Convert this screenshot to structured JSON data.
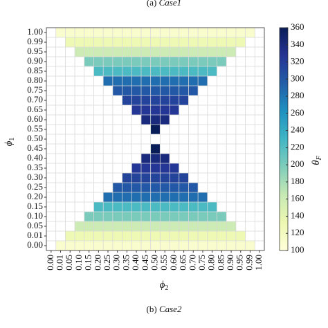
{
  "chart_data": {
    "type": "heatmap",
    "top_caption": {
      "label": "(a)",
      "text": "Case1"
    },
    "caption": {
      "label": "(b)",
      "text": "Case2"
    },
    "xlabel": {
      "symbol": "ϕ",
      "subscript": "2"
    },
    "ylabel": {
      "symbol": "ϕ",
      "subscript": "1"
    },
    "colorbar_label": {
      "symbol": "θ",
      "subscript": "F"
    },
    "x": [
      "0.00",
      "0.01",
      "0.05",
      "0.10",
      "0.15",
      "0.20",
      "0.25",
      "0.30",
      "0.35",
      "0.40",
      "0.45",
      "0.50",
      "0.55",
      "0.60",
      "0.65",
      "0.70",
      "0.75",
      "0.80",
      "0.85",
      "0.90",
      "0.95",
      "0.99",
      "1.00"
    ],
    "y": [
      "0.00",
      "0.01",
      "0.05",
      "0.10",
      "0.15",
      "0.20",
      "0.25",
      "0.30",
      "0.35",
      "0.40",
      "0.45",
      "0.50",
      "0.55",
      "0.60",
      "0.65",
      "0.70",
      "0.75",
      "0.80",
      "0.85",
      "0.90",
      "0.95",
      "0.99",
      "1.00"
    ],
    "z": [
      [
        null,
        110,
        110,
        110,
        110,
        110,
        110,
        110,
        110,
        110,
        110,
        110,
        110,
        110,
        110,
        110,
        110,
        110,
        110,
        110,
        110,
        110,
        null
      ],
      [
        null,
        null,
        130,
        130,
        130,
        130,
        130,
        130,
        130,
        130,
        130,
        130,
        130,
        130,
        130,
        130,
        130,
        130,
        130,
        130,
        130,
        null,
        null
      ],
      [
        null,
        null,
        null,
        160,
        160,
        160,
        160,
        160,
        160,
        160,
        160,
        160,
        160,
        160,
        160,
        160,
        160,
        160,
        160,
        160,
        null,
        null,
        null
      ],
      [
        null,
        null,
        null,
        null,
        200,
        200,
        200,
        200,
        200,
        200,
        200,
        200,
        200,
        200,
        200,
        200,
        200,
        200,
        200,
        null,
        null,
        null,
        null
      ],
      [
        null,
        null,
        null,
        null,
        null,
        225,
        225,
        225,
        225,
        225,
        225,
        225,
        225,
        225,
        225,
        225,
        225,
        225,
        null,
        null,
        null,
        null,
        null
      ],
      [
        null,
        null,
        null,
        null,
        null,
        null,
        285,
        285,
        285,
        285,
        285,
        285,
        285,
        285,
        285,
        285,
        285,
        null,
        null,
        null,
        null,
        null,
        null
      ],
      [
        null,
        null,
        null,
        null,
        null,
        null,
        null,
        300,
        300,
        300,
        300,
        300,
        300,
        300,
        300,
        300,
        null,
        null,
        null,
        null,
        null,
        null,
        null
      ],
      [
        null,
        null,
        null,
        null,
        null,
        null,
        null,
        null,
        315,
        315,
        315,
        315,
        315,
        315,
        315,
        null,
        null,
        null,
        null,
        null,
        null,
        null,
        null
      ],
      [
        null,
        null,
        null,
        null,
        null,
        null,
        null,
        null,
        null,
        325,
        325,
        325,
        325,
        325,
        null,
        null,
        null,
        null,
        null,
        null,
        null,
        null,
        null
      ],
      [
        null,
        null,
        null,
        null,
        null,
        null,
        null,
        null,
        null,
        null,
        340,
        340,
        340,
        null,
        null,
        null,
        null,
        null,
        null,
        null,
        null,
        null,
        null
      ],
      [
        null,
        null,
        null,
        null,
        null,
        null,
        null,
        null,
        null,
        null,
        null,
        360,
        null,
        null,
        null,
        null,
        null,
        null,
        null,
        null,
        null,
        null,
        null
      ],
      [
        null,
        null,
        null,
        null,
        null,
        null,
        null,
        null,
        null,
        null,
        null,
        null,
        null,
        null,
        null,
        null,
        null,
        null,
        null,
        null,
        null,
        null,
        null
      ],
      [
        null,
        null,
        null,
        null,
        null,
        null,
        null,
        null,
        null,
        null,
        null,
        360,
        null,
        null,
        null,
        null,
        null,
        null,
        null,
        null,
        null,
        null,
        null
      ],
      [
        null,
        null,
        null,
        null,
        null,
        null,
        null,
        null,
        null,
        null,
        340,
        340,
        340,
        null,
        null,
        null,
        null,
        null,
        null,
        null,
        null,
        null,
        null
      ],
      [
        null,
        null,
        null,
        null,
        null,
        null,
        null,
        null,
        null,
        325,
        325,
        325,
        325,
        325,
        null,
        null,
        null,
        null,
        null,
        null,
        null,
        null,
        null
      ],
      [
        null,
        null,
        null,
        null,
        null,
        null,
        null,
        null,
        315,
        315,
        315,
        315,
        315,
        315,
        315,
        null,
        null,
        null,
        null,
        null,
        null,
        null,
        null
      ],
      [
        null,
        null,
        null,
        null,
        null,
        null,
        null,
        300,
        300,
        300,
        300,
        300,
        300,
        300,
        300,
        300,
        null,
        null,
        null,
        null,
        null,
        null,
        null
      ],
      [
        null,
        null,
        null,
        null,
        null,
        null,
        285,
        285,
        285,
        285,
        285,
        285,
        285,
        285,
        285,
        285,
        285,
        null,
        null,
        null,
        null,
        null,
        null
      ],
      [
        null,
        null,
        null,
        null,
        null,
        225,
        225,
        225,
        225,
        225,
        225,
        225,
        225,
        225,
        225,
        225,
        225,
        225,
        null,
        null,
        null,
        null,
        null
      ],
      [
        null,
        null,
        null,
        null,
        200,
        200,
        200,
        200,
        200,
        200,
        200,
        200,
        200,
        200,
        200,
        200,
        200,
        200,
        200,
        null,
        null,
        null,
        null
      ],
      [
        null,
        null,
        null,
        160,
        160,
        160,
        160,
        160,
        160,
        160,
        160,
        160,
        160,
        160,
        160,
        160,
        160,
        160,
        160,
        160,
        null,
        null,
        null
      ],
      [
        null,
        null,
        130,
        130,
        130,
        130,
        130,
        130,
        130,
        130,
        130,
        130,
        130,
        130,
        130,
        130,
        130,
        130,
        130,
        130,
        130,
        null,
        null
      ],
      [
        null,
        110,
        110,
        110,
        110,
        110,
        110,
        110,
        110,
        110,
        110,
        110,
        110,
        110,
        110,
        110,
        110,
        110,
        110,
        110,
        110,
        110,
        null
      ]
    ],
    "clim": [
      100,
      360
    ],
    "cticks": [
      100,
      120,
      140,
      160,
      180,
      200,
      220,
      240,
      260,
      280,
      300,
      320,
      340,
      360
    ],
    "colorscale": [
      "#ffffd9",
      "#edf8b1",
      "#c7e9b4",
      "#7fcdbb",
      "#41b6c4",
      "#1d91c0",
      "#225ea8",
      "#253494",
      "#081d58"
    ],
    "grid": true
  }
}
